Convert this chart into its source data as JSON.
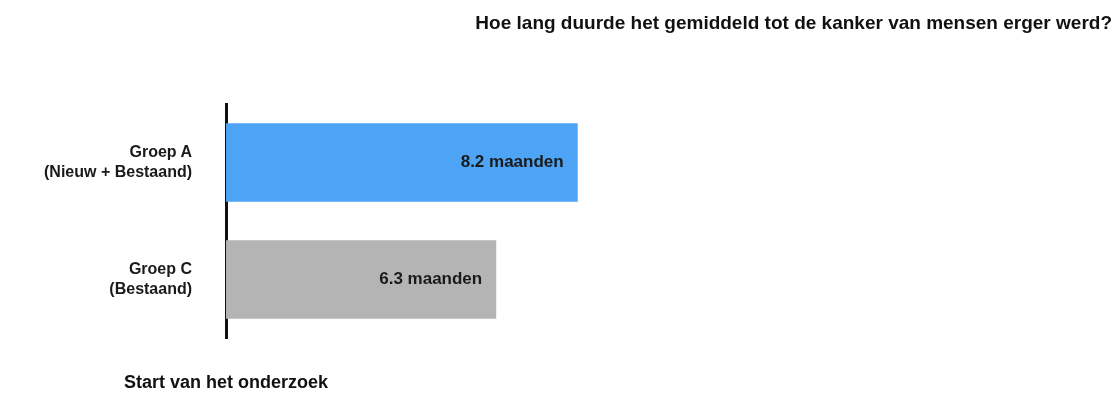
{
  "chart_data": {
    "type": "bar",
    "orientation": "horizontal",
    "title": "Hoe lang duurde het gemiddeld tot de kanker van mensen erger werd?",
    "categories": [
      "Groep A\n(Nieuw + Bestaand)",
      "Groep C\n(Bestaand)"
    ],
    "values": [
      8.2,
      6.3
    ],
    "colors": [
      "#4ea4f4",
      "#b4b4b4"
    ],
    "value_labels": [
      "8.2 maanden",
      "6.3 maanden"
    ],
    "annotations": [
      "Start van het onderzoek"
    ],
    "legend": false
  }
}
